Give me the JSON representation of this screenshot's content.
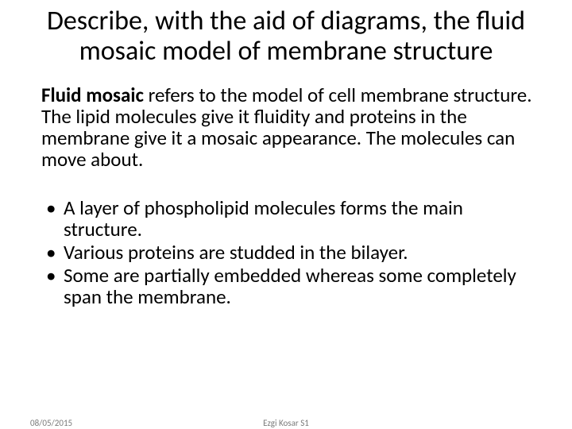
{
  "title": "Describe, with the aid of diagrams, the fluid mosaic model of membrane structure",
  "paragraph": {
    "bold_lead": "Fluid mosaic",
    "rest": " refers to the model of cell membrane structure. The lipid molecules give it fluidity and proteins in the membrane give it a mosaic appearance. The molecules can move about."
  },
  "bullets": [
    "A layer of phospholipid molecules forms the main structure.",
    "Various proteins are studded in the bilayer.",
    "Some are partially embedded whereas some completely span the membrane."
  ],
  "footer": {
    "date": "08/05/2015",
    "author": "Ezgi Kosar S1"
  },
  "colors": {
    "text": "#000000",
    "footer_text": "#7a7a7a",
    "background": "#ffffff"
  },
  "typography": {
    "title_fontsize": 34,
    "body_fontsize": 25,
    "footer_fontsize": 11,
    "font_family": "Calibri"
  }
}
